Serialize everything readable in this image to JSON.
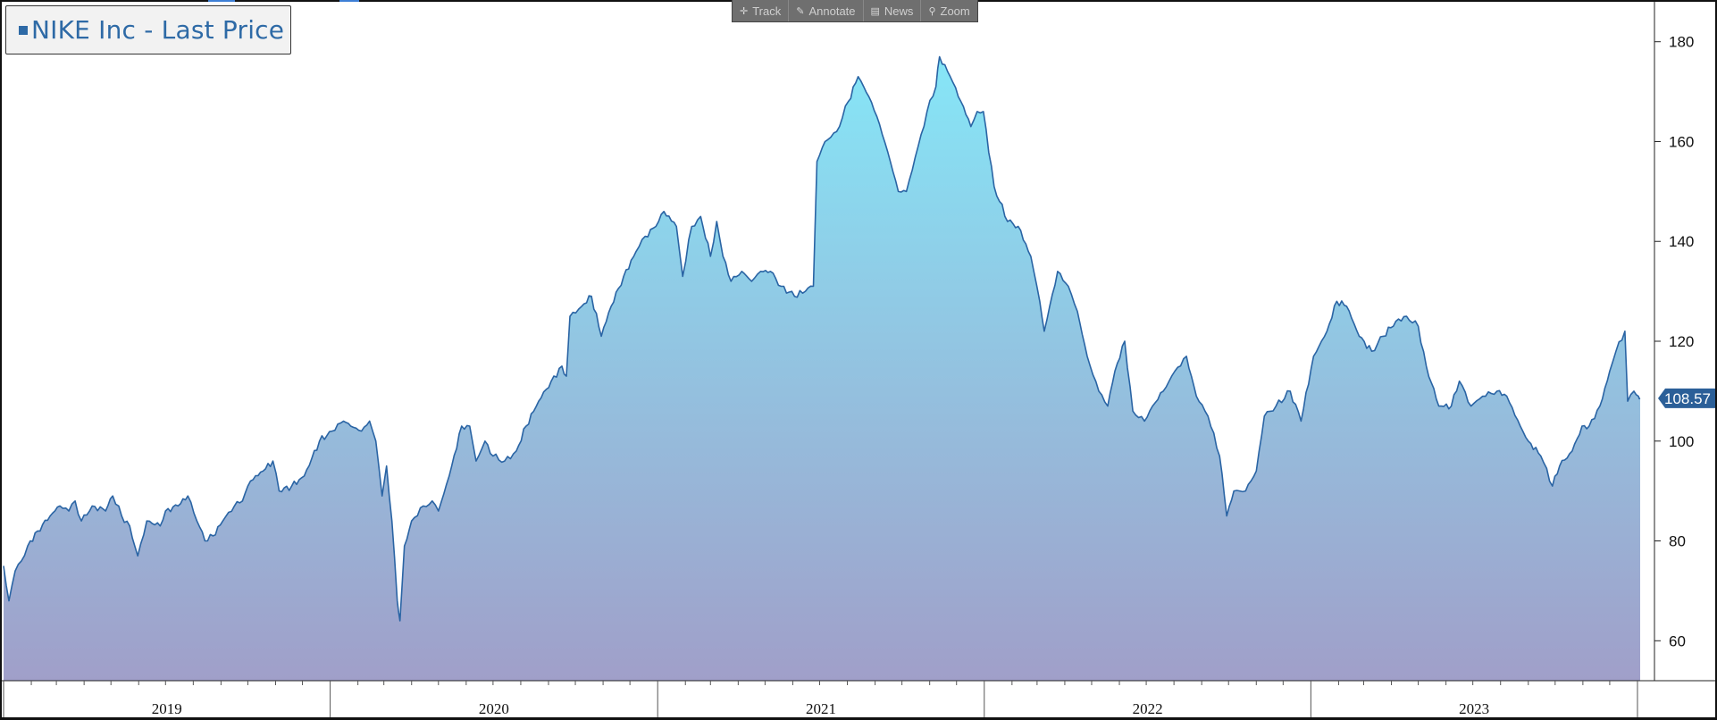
{
  "legend": {
    "label": "NIKE Inc - Last Price",
    "color": "#2e6aa6"
  },
  "toolbar": [
    {
      "label": "Track",
      "icon": "crosshair-icon"
    },
    {
      "label": "Annotate",
      "icon": "pencil-icon"
    },
    {
      "label": "News",
      "icon": "news-icon"
    },
    {
      "label": "Zoom",
      "icon": "magnifier-icon"
    }
  ],
  "chart_data": {
    "type": "area",
    "series": [
      {
        "name": "NIKE Inc - Last Price"
      }
    ],
    "yticks": [
      60,
      80,
      100,
      120,
      140,
      160,
      180
    ],
    "ylim": [
      52,
      188
    ],
    "year_labels": [
      "2019",
      "2020",
      "2021",
      "2022",
      "2023"
    ],
    "xlim": [
      "2019-01-01",
      "2024-01-20"
    ],
    "last_price": "108.57",
    "colors": {
      "line": "#2a64a4",
      "fill_top": "#86e6f7",
      "fill_bottom": "#a09fc9",
      "last_tag": "#2b5f98"
    },
    "points": [
      [
        "2019-01-01",
        75
      ],
      [
        "2019-01-07",
        68
      ],
      [
        "2019-01-14",
        74
      ],
      [
        "2019-01-21",
        76
      ],
      [
        "2019-01-28",
        79
      ],
      [
        "2019-02-08",
        82
      ],
      [
        "2019-02-22",
        85
      ],
      [
        "2019-03-05",
        87
      ],
      [
        "2019-03-15",
        86
      ],
      [
        "2019-03-22",
        88
      ],
      [
        "2019-03-29",
        84
      ],
      [
        "2019-04-10",
        87
      ],
      [
        "2019-04-25",
        86
      ],
      [
        "2019-05-03",
        89
      ],
      [
        "2019-05-13",
        85
      ],
      [
        "2019-05-22",
        83
      ],
      [
        "2019-05-31",
        77
      ],
      [
        "2019-06-10",
        84
      ],
      [
        "2019-06-25",
        83
      ],
      [
        "2019-07-01",
        86
      ],
      [
        "2019-07-15",
        87
      ],
      [
        "2019-07-26",
        89
      ],
      [
        "2019-08-05",
        84
      ],
      [
        "2019-08-14",
        80
      ],
      [
        "2019-08-23",
        81
      ],
      [
        "2019-09-03",
        84
      ],
      [
        "2019-09-16",
        87
      ],
      [
        "2019-09-25",
        88
      ],
      [
        "2019-10-04",
        92
      ],
      [
        "2019-10-18",
        94
      ],
      [
        "2019-10-29",
        96
      ],
      [
        "2019-11-05",
        90
      ],
      [
        "2019-11-19",
        91
      ],
      [
        "2019-12-03",
        93
      ],
      [
        "2019-12-20",
        100
      ],
      [
        "2020-01-03",
        102
      ],
      [
        "2020-01-16",
        104
      ],
      [
        "2020-01-24",
        103
      ],
      [
        "2020-02-05",
        102
      ],
      [
        "2020-02-14",
        104
      ],
      [
        "2020-02-21",
        100
      ],
      [
        "2020-02-28",
        89
      ],
      [
        "2020-03-04",
        95
      ],
      [
        "2020-03-10",
        84
      ],
      [
        "2020-03-16",
        68
      ],
      [
        "2020-03-19",
        64
      ],
      [
        "2020-03-24",
        79
      ],
      [
        "2020-04-01",
        84
      ],
      [
        "2020-04-14",
        87
      ],
      [
        "2020-04-24",
        88
      ],
      [
        "2020-05-01",
        86
      ],
      [
        "2020-05-13",
        93
      ],
      [
        "2020-05-27",
        103
      ],
      [
        "2020-06-05",
        103
      ],
      [
        "2020-06-12",
        96
      ],
      [
        "2020-06-22",
        100
      ],
      [
        "2020-07-01",
        97
      ],
      [
        "2020-07-14",
        96
      ],
      [
        "2020-07-27",
        98
      ],
      [
        "2020-08-07",
        103
      ],
      [
        "2020-08-21",
        108
      ],
      [
        "2020-09-04",
        112
      ],
      [
        "2020-09-16",
        115
      ],
      [
        "2020-09-21",
        113
      ],
      [
        "2020-09-25",
        125
      ],
      [
        "2020-10-08",
        127
      ],
      [
        "2020-10-19",
        129
      ],
      [
        "2020-10-30",
        121
      ],
      [
        "2020-11-10",
        127
      ],
      [
        "2020-11-24",
        133
      ],
      [
        "2020-12-08",
        138
      ],
      [
        "2020-12-18",
        141
      ],
      [
        "2020-12-30",
        143
      ],
      [
        "2021-01-08",
        146
      ],
      [
        "2021-01-22",
        143
      ],
      [
        "2021-01-29",
        133
      ],
      [
        "2021-02-08",
        143
      ],
      [
        "2021-02-18",
        145
      ],
      [
        "2021-03-01",
        137
      ],
      [
        "2021-03-08",
        144
      ],
      [
        "2021-03-15",
        137
      ],
      [
        "2021-03-24",
        132
      ],
      [
        "2021-04-05",
        134
      ],
      [
        "2021-04-16",
        132
      ],
      [
        "2021-04-26",
        134
      ],
      [
        "2021-05-07",
        134
      ],
      [
        "2021-05-19",
        131
      ],
      [
        "2021-06-03",
        129
      ],
      [
        "2021-06-15",
        130
      ],
      [
        "2021-06-24",
        131
      ],
      [
        "2021-06-28",
        156
      ],
      [
        "2021-07-07",
        160
      ],
      [
        "2021-07-20",
        162
      ],
      [
        "2021-08-02",
        168
      ],
      [
        "2021-08-13",
        173
      ],
      [
        "2021-08-25",
        169
      ],
      [
        "2021-09-03",
        165
      ],
      [
        "2021-09-15",
        158
      ],
      [
        "2021-09-27",
        150
      ],
      [
        "2021-10-06",
        150
      ],
      [
        "2021-10-19",
        159
      ],
      [
        "2021-10-29",
        166
      ],
      [
        "2021-11-08",
        171
      ],
      [
        "2021-11-12",
        177
      ],
      [
        "2021-11-24",
        173
      ],
      [
        "2021-12-06",
        168
      ],
      [
        "2021-12-17",
        163
      ],
      [
        "2021-12-24",
        166
      ],
      [
        "2021-12-31",
        166
      ],
      [
        "2022-01-12",
        151
      ],
      [
        "2022-01-27",
        144
      ],
      [
        "2022-02-08",
        143
      ],
      [
        "2022-02-22",
        137
      ],
      [
        "2022-03-04",
        128
      ],
      [
        "2022-03-09",
        122
      ],
      [
        "2022-03-24",
        134
      ],
      [
        "2022-04-05",
        131
      ],
      [
        "2022-04-15",
        126
      ],
      [
        "2022-04-26",
        117
      ],
      [
        "2022-05-09",
        110
      ],
      [
        "2022-05-19",
        107
      ],
      [
        "2022-05-27",
        114
      ],
      [
        "2022-06-07",
        120
      ],
      [
        "2022-06-16",
        106
      ],
      [
        "2022-06-29",
        104
      ],
      [
        "2022-07-08",
        107
      ],
      [
        "2022-07-20",
        110
      ],
      [
        "2022-08-02",
        114
      ],
      [
        "2022-08-15",
        117
      ],
      [
        "2022-08-26",
        109
      ],
      [
        "2022-09-08",
        105
      ],
      [
        "2022-09-21",
        97
      ],
      [
        "2022-09-29",
        85
      ],
      [
        "2022-10-07",
        90
      ],
      [
        "2022-10-20",
        90
      ],
      [
        "2022-11-01",
        94
      ],
      [
        "2022-11-10",
        105
      ],
      [
        "2022-11-23",
        107
      ],
      [
        "2022-12-09",
        110
      ],
      [
        "2022-12-21",
        104
      ],
      [
        "2023-01-04",
        117
      ],
      [
        "2023-01-19",
        122
      ],
      [
        "2023-01-30",
        128
      ],
      [
        "2023-02-10",
        127
      ],
      [
        "2023-02-24",
        121
      ],
      [
        "2023-03-10",
        118
      ],
      [
        "2023-03-23",
        121
      ],
      [
        "2023-04-06",
        124
      ],
      [
        "2023-04-18",
        125
      ],
      [
        "2023-05-01",
        123
      ],
      [
        "2023-05-10",
        115
      ],
      [
        "2023-05-24",
        107
      ],
      [
        "2023-06-07",
        107
      ],
      [
        "2023-06-16",
        112
      ],
      [
        "2023-06-29",
        107
      ],
      [
        "2023-07-12",
        109
      ],
      [
        "2023-07-28",
        110
      ],
      [
        "2023-08-08",
        109
      ],
      [
        "2023-08-23",
        103
      ],
      [
        "2023-09-01",
        100
      ],
      [
        "2023-09-15",
        97
      ],
      [
        "2023-09-28",
        91
      ],
      [
        "2023-10-06",
        95
      ],
      [
        "2023-10-20",
        98
      ],
      [
        "2023-10-31",
        103
      ],
      [
        "2023-11-08",
        103
      ],
      [
        "2023-11-20",
        107
      ],
      [
        "2023-12-01",
        114
      ],
      [
        "2023-12-08",
        118
      ],
      [
        "2023-12-18",
        122
      ],
      [
        "2023-12-21",
        108
      ],
      [
        "2023-12-28",
        110
      ],
      [
        "2024-01-02",
        109
      ],
      [
        "2024-01-04",
        108.57
      ]
    ]
  }
}
